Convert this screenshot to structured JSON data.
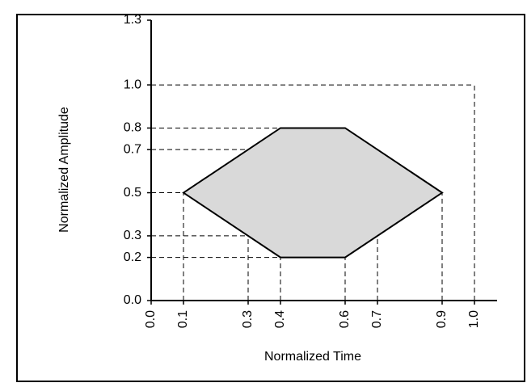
{
  "chart_data": {
    "type": "polygon",
    "x_label": "Normalized Time",
    "y_label": "Normalized Amplitude",
    "x": [
      0.1,
      0.4,
      0.6,
      0.9,
      0.6,
      0.4
    ],
    "values": [
      0.5,
      0.8,
      0.8,
      0.5,
      0.2,
      0.2
    ],
    "color": "#d9d9d9",
    "xlim": [
      0,
      1.07
    ],
    "ylim": [
      0,
      1.3
    ],
    "xticks": [
      {
        "value": 0,
        "label": "0.0"
      },
      0.1,
      0.3,
      0.4,
      0.6,
      0.7,
      0.9,
      {
        "value": 1,
        "label": "1.0"
      }
    ],
    "yticks": [
      {
        "value": 0,
        "label": "0.0"
      },
      0.2,
      0.3,
      0.5,
      0.7,
      0.8,
      {
        "value": 1,
        "label": "1.0"
      },
      1.3
    ]
  }
}
